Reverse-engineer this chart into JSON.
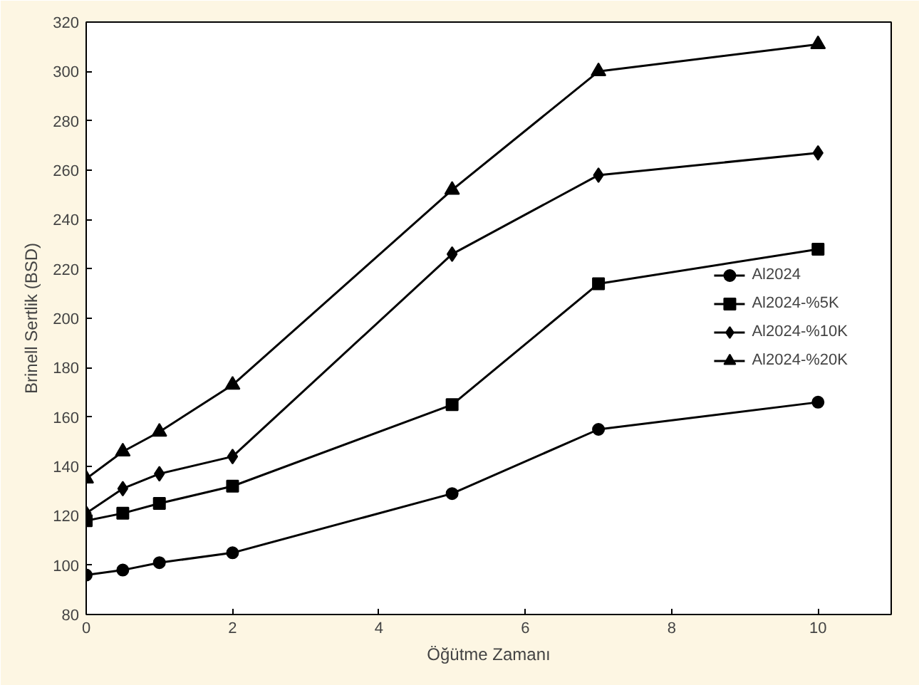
{
  "chart_data": {
    "type": "line",
    "xlabel": "Öğütme Zamanı",
    "ylabel": "Brinell Sertlik (BSD)",
    "x": [
      0,
      0.5,
      1,
      2,
      5,
      7,
      10
    ],
    "xlim": [
      0,
      11
    ],
    "xticks": [
      0,
      2,
      4,
      6,
      8,
      10
    ],
    "ylim": [
      80,
      320
    ],
    "yticks": [
      80,
      100,
      120,
      140,
      160,
      180,
      200,
      220,
      240,
      260,
      280,
      300,
      320
    ],
    "grid": false,
    "legend": "right",
    "series": [
      {
        "name": "Al2024",
        "color": "#000000",
        "marker": "circle",
        "values": [
          96,
          98,
          101,
          105,
          129,
          155,
          166
        ]
      },
      {
        "name": "Al2024-%5K",
        "color": "#000000",
        "marker": "square",
        "values": [
          118,
          121,
          125,
          132,
          165,
          214,
          228
        ]
      },
      {
        "name": "Al2024-%10K",
        "color": "#000000",
        "marker": "diamond",
        "values": [
          121,
          131,
          137,
          144,
          226,
          258,
          267
        ]
      },
      {
        "name": "Al2024-%20K",
        "color": "#000000",
        "marker": "triangle",
        "values": [
          135,
          146,
          154,
          173,
          252,
          300,
          311
        ]
      }
    ]
  }
}
